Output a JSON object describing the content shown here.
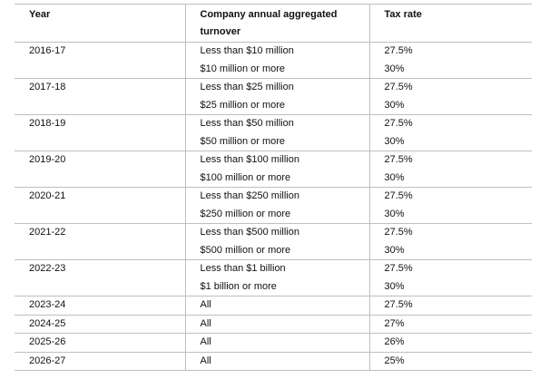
{
  "table": {
    "headers": {
      "year": "Year",
      "turnover": "Company annual aggregated turnover",
      "tax_rate": "Tax rate"
    },
    "rows": [
      {
        "year": "2016-17",
        "lines": [
          {
            "turnover": "Less than $10 million",
            "rate": "27.5%"
          },
          {
            "turnover": "$10 million or more",
            "rate": "30%"
          }
        ]
      },
      {
        "year": "2017-18",
        "lines": [
          {
            "turnover": "Less than $25 million",
            "rate": "27.5%"
          },
          {
            "turnover": "$25 million or more",
            "rate": "30%"
          }
        ]
      },
      {
        "year": "2018-19",
        "lines": [
          {
            "turnover": "Less than $50 million",
            "rate": "27.5%"
          },
          {
            "turnover": "$50 million or more",
            "rate": "30%"
          }
        ]
      },
      {
        "year": "2019-20",
        "lines": [
          {
            "turnover": "Less than $100 million",
            "rate": "27.5%"
          },
          {
            "turnover": "$100 million or more",
            "rate": "30%"
          }
        ]
      },
      {
        "year": "2020-21",
        "lines": [
          {
            "turnover": "Less than $250 million",
            "rate": "27.5%"
          },
          {
            "turnover": "$250 million or more",
            "rate": "30%"
          }
        ]
      },
      {
        "year": "2021-22",
        "lines": [
          {
            "turnover": "Less than $500 million",
            "rate": "27.5%"
          },
          {
            "turnover": "$500 million or more",
            "rate": "30%"
          }
        ]
      },
      {
        "year": "2022-23",
        "lines": [
          {
            "turnover": "Less than $1 billion",
            "rate": "27.5%"
          },
          {
            "turnover": "$1 billion or more",
            "rate": "30%"
          }
        ]
      },
      {
        "year": "2023-24",
        "lines": [
          {
            "turnover": "All",
            "rate": "27.5%"
          }
        ]
      },
      {
        "year": "2024-25",
        "lines": [
          {
            "turnover": "All",
            "rate": "27%"
          }
        ]
      },
      {
        "year": "2025-26",
        "lines": [
          {
            "turnover": "All",
            "rate": "26%"
          }
        ]
      },
      {
        "year": "2026-27",
        "lines": [
          {
            "turnover": "All",
            "rate": "25%"
          }
        ]
      }
    ]
  }
}
